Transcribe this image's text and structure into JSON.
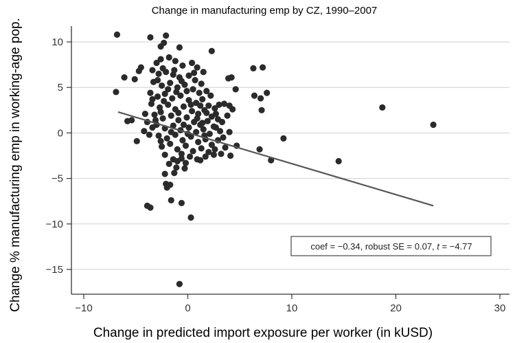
{
  "chart_data": {
    "type": "scatter",
    "title": "Change in manufacturing emp by CZ, 1990–2007",
    "xlabel": "Change in predicted import exposure per worker (in kUSD)",
    "ylabel": "Change % manufacturing emp in working-age pop.",
    "xlim": [
      -11,
      31
    ],
    "ylim": [
      -17.5,
      11.5
    ],
    "xticks": [
      -10,
      0,
      10,
      20,
      30
    ],
    "yticks": [
      10,
      5,
      0,
      -5,
      -10,
      -15
    ],
    "xtick_labels": [
      "−10",
      "0",
      "10",
      "20",
      "30"
    ],
    "ytick_labels": [
      "10",
      "5",
      "0",
      "−5",
      "−10",
      "−15"
    ],
    "grid": "horizontal",
    "annotation": {
      "prefix": "coef = −0.34, robust SE = 0.07, ",
      "t_symbol": "t",
      "suffix": " = −4.77",
      "placement": "lower-right"
    },
    "fit_line": {
      "x": [
        -6.7,
        23.6
      ],
      "y": [
        2.3,
        -8.0
      ],
      "color": "#555555"
    },
    "marker_color": "#2b2b2b",
    "points": [
      [
        -6.8,
        10.8
      ],
      [
        -3.6,
        10.5
      ],
      [
        -2.1,
        10.7
      ],
      [
        -0.8,
        9.4
      ],
      [
        2.3,
        9.0
      ],
      [
        -2.6,
        9.5
      ],
      [
        -2.3,
        9.9
      ],
      [
        -4.5,
        7.2
      ],
      [
        -4.7,
        6.8
      ],
      [
        -5.1,
        5.9
      ],
      [
        -6.1,
        6.1
      ],
      [
        -6.9,
        4.5
      ],
      [
        -5.4,
        1.4
      ],
      [
        -5.8,
        1.3
      ],
      [
        -4.9,
        -0.9
      ],
      [
        -4.2,
        0.2
      ],
      [
        -3.7,
        -0.2
      ],
      [
        -3.4,
        0.6
      ],
      [
        -3.9,
        1.2
      ],
      [
        -4.1,
        2.1
      ],
      [
        -3.9,
        -8.0
      ],
      [
        -3.6,
        -8.2
      ],
      [
        -1.6,
        -7.4
      ],
      [
        -0.6,
        -7.7
      ],
      [
        0.3,
        -9.3
      ],
      [
        -0.8,
        -16.6
      ],
      [
        -2.2,
        -4.5
      ],
      [
        -2.1,
        -5.6
      ],
      [
        -1.7,
        -5.7
      ],
      [
        -2.0,
        -6.0
      ],
      [
        -1.3,
        -4.4
      ],
      [
        -1.1,
        -3.8
      ],
      [
        -0.6,
        -2.8
      ],
      [
        -0.2,
        -3.3
      ],
      [
        0.9,
        -2.9
      ],
      [
        1.2,
        -3.0
      ],
      [
        1.7,
        -2.6
      ],
      [
        2.5,
        -2.4
      ],
      [
        3.2,
        -2.3
      ],
      [
        4.1,
        -2.5
      ],
      [
        3.6,
        -1.6
      ],
      [
        4.7,
        -1.4
      ],
      [
        2.9,
        -0.8
      ],
      [
        3.4,
        -0.5
      ],
      [
        4.0,
        0.1
      ],
      [
        2.7,
        0.6
      ],
      [
        3.3,
        1.2
      ],
      [
        3.8,
        1.9
      ],
      [
        4.3,
        2.6
      ],
      [
        3.0,
        3.1
      ],
      [
        3.5,
        3.2
      ],
      [
        4.0,
        3.0
      ],
      [
        4.2,
        6.1
      ],
      [
        3.9,
        6.0
      ],
      [
        4.6,
        4.8
      ],
      [
        6.3,
        7.1
      ],
      [
        7.2,
        7.2
      ],
      [
        6.4,
        4.1
      ],
      [
        7.6,
        4.4
      ],
      [
        7.0,
        3.8
      ],
      [
        7.1,
        2.5
      ],
      [
        6.9,
        -1.8
      ],
      [
        8.0,
        -3.0
      ],
      [
        9.2,
        -0.6
      ],
      [
        14.5,
        -3.1
      ],
      [
        18.7,
        2.8
      ],
      [
        23.6,
        0.9
      ],
      [
        -3.0,
        7.7
      ],
      [
        -2.6,
        8.1
      ],
      [
        -1.8,
        8.3
      ],
      [
        -1.2,
        7.9
      ],
      [
        -0.5,
        7.4
      ],
      [
        0.4,
        7.7
      ],
      [
        0.9,
        7.2
      ],
      [
        1.5,
        6.7
      ],
      [
        -3.4,
        6.9
      ],
      [
        -2.8,
        6.5
      ],
      [
        -2.1,
        6.7
      ],
      [
        -1.4,
        6.4
      ],
      [
        -0.8,
        6.1
      ],
      [
        0.1,
        6.3
      ],
      [
        0.7,
        5.8
      ],
      [
        1.3,
        5.4
      ],
      [
        -3.3,
        5.6
      ],
      [
        -2.5,
        5.2
      ],
      [
        -1.7,
        5.5
      ],
      [
        -1.0,
        5.0
      ],
      [
        -0.3,
        5.3
      ],
      [
        0.5,
        4.8
      ],
      [
        1.1,
        4.4
      ],
      [
        1.8,
        4.6
      ],
      [
        2.2,
        4.1
      ],
      [
        -3.6,
        4.4
      ],
      [
        -2.9,
        4.0
      ],
      [
        -2.2,
        4.3
      ],
      [
        -1.5,
        3.8
      ],
      [
        -0.7,
        4.1
      ],
      [
        0.1,
        3.6
      ],
      [
        0.8,
        3.3
      ],
      [
        1.4,
        3.7
      ],
      [
        2.0,
        3.0
      ],
      [
        2.6,
        2.7
      ],
      [
        -3.5,
        3.2
      ],
      [
        -2.7,
        2.8
      ],
      [
        -1.9,
        3.1
      ],
      [
        -1.2,
        2.6
      ],
      [
        -0.4,
        2.9
      ],
      [
        0.4,
        2.4
      ],
      [
        1.0,
        2.1
      ],
      [
        1.6,
        2.5
      ],
      [
        2.3,
        1.8
      ],
      [
        2.9,
        1.5
      ],
      [
        -3.2,
        2.0
      ],
      [
        -2.4,
        1.6
      ],
      [
        -1.6,
        1.9
      ],
      [
        -0.9,
        1.4
      ],
      [
        -0.1,
        1.7
      ],
      [
        0.6,
        1.2
      ],
      [
        1.2,
        0.9
      ],
      [
        1.9,
        1.3
      ],
      [
        2.5,
        0.7
      ],
      [
        -3.0,
        0.9
      ],
      [
        -2.2,
        0.5
      ],
      [
        -1.4,
        0.8
      ],
      [
        -0.7,
        0.3
      ],
      [
        0.1,
        0.6
      ],
      [
        0.8,
        0.1
      ],
      [
        1.5,
        0.4
      ],
      [
        2.1,
        -0.1
      ],
      [
        -2.8,
        -0.3
      ],
      [
        -2.0,
        -0.6
      ],
      [
        -1.2,
        -0.2
      ],
      [
        -0.5,
        -0.8
      ],
      [
        0.3,
        -0.4
      ],
      [
        1.0,
        -1.0
      ],
      [
        1.7,
        -0.7
      ],
      [
        2.3,
        -1.3
      ],
      [
        -2.5,
        -1.5
      ],
      [
        -1.7,
        -1.2
      ],
      [
        -1.0,
        -1.8
      ],
      [
        -0.2,
        -1.4
      ],
      [
        0.5,
        -2.0
      ],
      [
        1.3,
        -1.7
      ],
      [
        2.0,
        -2.1
      ],
      [
        -2.2,
        -2.4
      ],
      [
        -1.4,
        -2.9
      ],
      [
        -0.6,
        -2.3
      ],
      [
        0.2,
        -2.6
      ],
      [
        -1.8,
        -3.4
      ],
      [
        -1.0,
        -3.1
      ],
      [
        -0.3,
        -3.9
      ],
      [
        -3.4,
        3.7
      ],
      [
        -2.9,
        5.8
      ],
      [
        -2.4,
        7.1
      ],
      [
        -1.9,
        4.8
      ],
      [
        -1.3,
        6.9
      ],
      [
        -0.6,
        5.7
      ],
      [
        -0.1,
        4.6
      ],
      [
        0.6,
        6.6
      ],
      [
        1.2,
        3.0
      ],
      [
        1.8,
        2.2
      ],
      [
        -2.6,
        2.3
      ],
      [
        -1.6,
        0.1
      ],
      [
        -0.9,
        2.2
      ],
      [
        0.0,
        -0.1
      ],
      [
        0.9,
        1.6
      ],
      [
        1.6,
        -0.3
      ],
      [
        -2.3,
        3.5
      ],
      [
        -1.1,
        4.5
      ],
      [
        -0.4,
        0.9
      ],
      [
        0.3,
        3.1
      ],
      [
        1.4,
        1.1
      ],
      [
        2.7,
        2.1
      ],
      [
        3.1,
        0.2
      ],
      [
        2.6,
        -1.8
      ],
      [
        -3.1,
        1.4
      ],
      [
        -2.6,
        -0.9
      ]
    ]
  }
}
